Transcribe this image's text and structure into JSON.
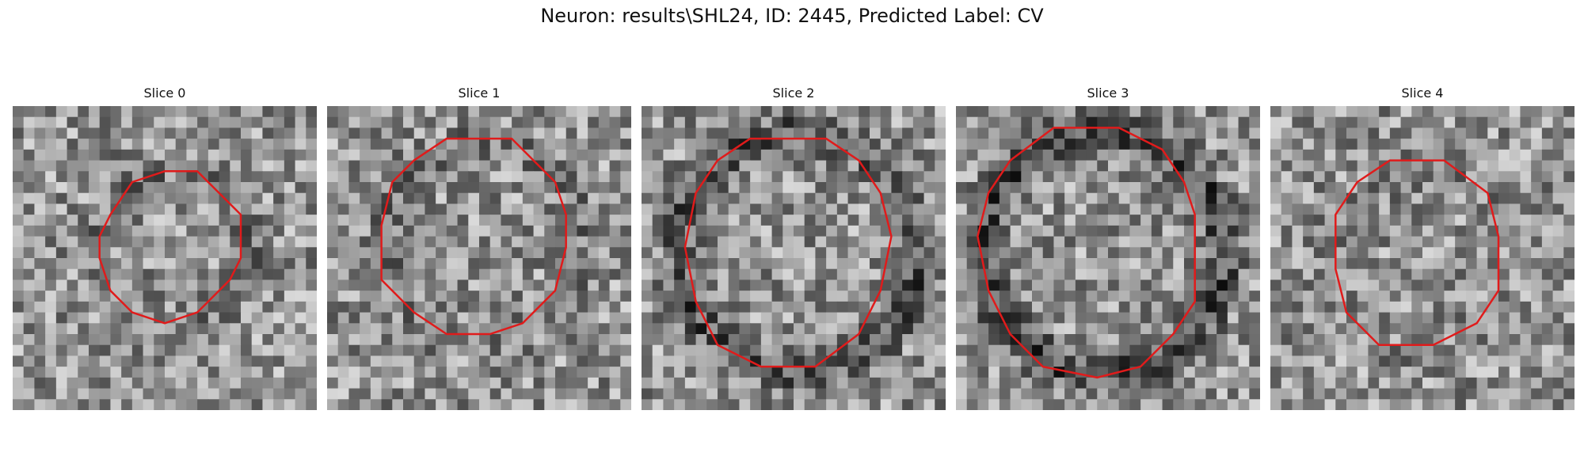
{
  "figure": {
    "title": "Neuron: results\\SHL24, ID: 2445, Predicted Label: CV"
  },
  "contour_color": "#e01b1b",
  "panels": [
    {
      "title": "Slice 0",
      "contour": [
        [
          14,
          6
        ],
        [
          17,
          6
        ],
        [
          19,
          8
        ],
        [
          21,
          10
        ],
        [
          21,
          14
        ],
        [
          20,
          16
        ],
        [
          18,
          18
        ],
        [
          17,
          19
        ],
        [
          14,
          20
        ],
        [
          11,
          19
        ],
        [
          9,
          17
        ],
        [
          8,
          14
        ],
        [
          8,
          12
        ],
        [
          9,
          10
        ],
        [
          11,
          7
        ]
      ],
      "seed": 11,
      "center": [
        14,
        13
      ],
      "ring_radius": 7,
      "ring_dark": 0.1
    },
    {
      "title": "Slice 1",
      "contour": [
        [
          11,
          3
        ],
        [
          17,
          3
        ],
        [
          21,
          7
        ],
        [
          22,
          10
        ],
        [
          22,
          13
        ],
        [
          21,
          17
        ],
        [
          18,
          20
        ],
        [
          15,
          21
        ],
        [
          11,
          21
        ],
        [
          8,
          19
        ],
        [
          5,
          16
        ],
        [
          5,
          11
        ],
        [
          6,
          7
        ],
        [
          8,
          5
        ]
      ],
      "seed": 23,
      "center": [
        14,
        12
      ],
      "ring_radius": 9,
      "ring_dark": 0.1
    },
    {
      "title": "Slice 2",
      "contour": [
        [
          10,
          3
        ],
        [
          17,
          3
        ],
        [
          20,
          5
        ],
        [
          22,
          8
        ],
        [
          23,
          12
        ],
        [
          22,
          17
        ],
        [
          20,
          21
        ],
        [
          16,
          24
        ],
        [
          11,
          24
        ],
        [
          7,
          22
        ],
        [
          5,
          18
        ],
        [
          4,
          13
        ],
        [
          5,
          8
        ],
        [
          7,
          5
        ]
      ],
      "seed": 37,
      "center": [
        14,
        13
      ],
      "ring_radius": 11,
      "ring_dark": 0.25
    },
    {
      "title": "Slice 3",
      "contour": [
        [
          9,
          2
        ],
        [
          15,
          2
        ],
        [
          19,
          4
        ],
        [
          21,
          7
        ],
        [
          22,
          10
        ],
        [
          22,
          18
        ],
        [
          20,
          21
        ],
        [
          17,
          24
        ],
        [
          13,
          25
        ],
        [
          8,
          24
        ],
        [
          5,
          21
        ],
        [
          3,
          17
        ],
        [
          2,
          12
        ],
        [
          3,
          8
        ],
        [
          5,
          5
        ]
      ],
      "seed": 53,
      "center": [
        13,
        13
      ],
      "ring_radius": 11,
      "ring_dark": 0.3
    },
    {
      "title": "Slice 4",
      "contour": [
        [
          11,
          5
        ],
        [
          16,
          5
        ],
        [
          20,
          8
        ],
        [
          21,
          12
        ],
        [
          21,
          17
        ],
        [
          19,
          20
        ],
        [
          15,
          22
        ],
        [
          10,
          22
        ],
        [
          7,
          19
        ],
        [
          6,
          15
        ],
        [
          6,
          10
        ],
        [
          8,
          7
        ]
      ],
      "seed": 71,
      "center": [
        14,
        14
      ],
      "ring_radius": 8,
      "ring_dark": 0.05
    }
  ]
}
